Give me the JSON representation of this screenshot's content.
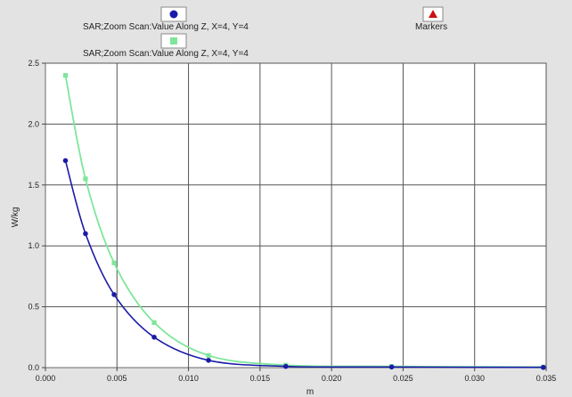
{
  "chart_data": {
    "type": "line",
    "xlabel": "m",
    "ylabel": "W/kg",
    "xlim": [
      0.0,
      0.035
    ],
    "ylim": [
      0.0,
      2.5
    ],
    "x_ticks": [
      "0.000",
      "0.005",
      "0.010",
      "0.015",
      "0.020",
      "0.025",
      "0.030",
      "0.035"
    ],
    "y_ticks": [
      "0.0",
      "0.5",
      "1.0",
      "1.5",
      "2.0",
      "2.5"
    ],
    "grid": true,
    "legend_position": "top",
    "series": [
      {
        "name": "SAR;Zoom Scan:Value Along Z, X=4, Y=4",
        "color": "#1a1aa8",
        "marker": "circle",
        "x": [
          0.0014,
          0.0028,
          0.0048,
          0.0076,
          0.0114,
          0.0168,
          0.0242,
          0.0348
        ],
        "y": [
          1.7,
          1.1,
          0.6,
          0.25,
          0.06,
          0.01,
          0.005,
          0.002
        ]
      },
      {
        "name": "SAR;Zoom Scan:Value Along Z, X=4, Y=4",
        "color": "#7ee69a",
        "marker": "square",
        "x": [
          0.0014,
          0.0028,
          0.0048,
          0.0076,
          0.0114,
          0.0168,
          0.0242,
          0.0348
        ],
        "y": [
          2.4,
          1.55,
          0.86,
          0.37,
          0.1,
          0.02,
          0.01,
          0.005
        ]
      }
    ],
    "markers": {
      "name": "Markers",
      "color": "#cc1111",
      "marker": "triangle"
    }
  }
}
